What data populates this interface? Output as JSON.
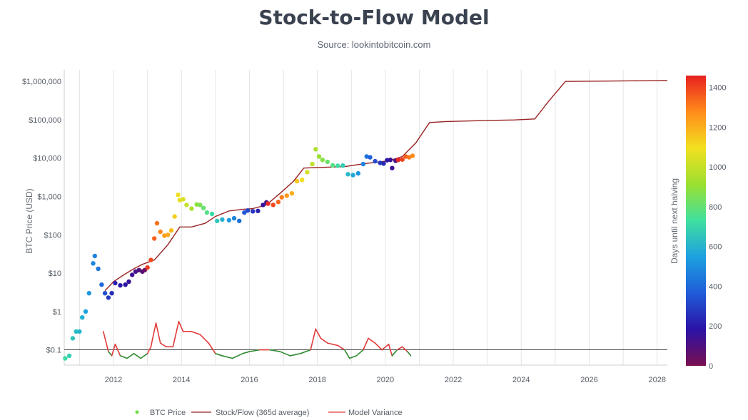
{
  "chart_data": {
    "type": "scatter",
    "title": "Stock-to-Flow Model",
    "subtitle": "Source: lookintobitcoin.com",
    "ylabel": "BTC Price (USD)",
    "xlabel": "",
    "y_scale": "log",
    "ylim": [
      0.04,
      2000000
    ],
    "xlim": [
      2010.55,
      2028.3
    ],
    "x_ticks": [
      {
        "value": 2012,
        "label": "2012"
      },
      {
        "value": 2014,
        "label": "2014"
      },
      {
        "value": 2016,
        "label": "2016"
      },
      {
        "value": 2018,
        "label": "2018"
      },
      {
        "value": 2020,
        "label": "2020"
      },
      {
        "value": 2022,
        "label": "2022"
      },
      {
        "value": 2024,
        "label": "2024"
      },
      {
        "value": 2026,
        "label": "2026"
      },
      {
        "value": 2028,
        "label": "2028"
      }
    ],
    "y_ticks": [
      {
        "value": 1000000,
        "label": "$1,000,000"
      },
      {
        "value": 100000,
        "label": "$100,000"
      },
      {
        "value": 10000,
        "label": "$10,000"
      },
      {
        "value": 1000,
        "label": "$1,000"
      },
      {
        "value": 100,
        "label": "$100"
      },
      {
        "value": 10,
        "label": "$10"
      },
      {
        "value": 1,
        "label": "$1"
      },
      {
        "value": 0.1,
        "label": "$0.1"
      }
    ],
    "reference_line_y": 0.1,
    "colorbar": {
      "label": "Days until next halving",
      "range": [
        0,
        1460
      ],
      "ticks": [
        {
          "value": 1400,
          "label": "1400"
        },
        {
          "value": 1200,
          "label": "1200"
        },
        {
          "value": 1000,
          "label": "1000"
        },
        {
          "value": 800,
          "label": "800"
        },
        {
          "value": 600,
          "label": "600"
        },
        {
          "value": 400,
          "label": "400"
        },
        {
          "value": 200,
          "label": "200"
        },
        {
          "value": 0,
          "label": "0"
        }
      ],
      "colors": [
        "#7a0f50",
        "#2b12a6",
        "#1f5bd8",
        "#1da0e0",
        "#3fe0a0",
        "#9be030",
        "#f2e020",
        "#ff8c1a",
        "#e82020"
      ]
    },
    "series": [
      {
        "name": "BTC Price",
        "kind": "scatter",
        "color": "#6fe040",
        "points": [
          [
            2010.58,
            0.06,
            720
          ],
          [
            2010.7,
            0.07,
            680
          ],
          [
            2010.8,
            0.2,
            650
          ],
          [
            2010.9,
            0.3,
            630
          ],
          [
            2011.0,
            0.3,
            610
          ],
          [
            2011.08,
            0.7,
            590
          ],
          [
            2011.18,
            1.0,
            560
          ],
          [
            2011.28,
            3.0,
            520
          ],
          [
            2011.4,
            18,
            480
          ],
          [
            2011.45,
            28,
            470
          ],
          [
            2011.55,
            13,
            440
          ],
          [
            2011.65,
            5,
            400
          ],
          [
            2011.75,
            3,
            340
          ],
          [
            2011.85,
            2.3,
            280
          ],
          [
            2011.95,
            3.0,
            250
          ],
          [
            2012.05,
            5.5,
            220
          ],
          [
            2012.2,
            4.8,
            200
          ],
          [
            2012.35,
            5.0,
            180
          ],
          [
            2012.45,
            6.0,
            160
          ],
          [
            2012.55,
            9,
            140
          ],
          [
            2012.65,
            11,
            120
          ],
          [
            2012.75,
            12,
            100
          ],
          [
            2012.85,
            11,
            80
          ],
          [
            2012.92,
            12,
            40
          ],
          [
            2013.0,
            14,
            1420
          ],
          [
            2013.1,
            22,
            1390
          ],
          [
            2013.2,
            80,
            1350
          ],
          [
            2013.28,
            200,
            1320
          ],
          [
            2013.38,
            120,
            1290
          ],
          [
            2013.5,
            95,
            1240
          ],
          [
            2013.6,
            100,
            1210
          ],
          [
            2013.7,
            130,
            1170
          ],
          [
            2013.8,
            300,
            1130
          ],
          [
            2013.9,
            1100,
            1090
          ],
          [
            2013.95,
            800,
            1070
          ],
          [
            2014.05,
            850,
            1040
          ],
          [
            2014.15,
            600,
            1000
          ],
          [
            2014.3,
            480,
            950
          ],
          [
            2014.45,
            620,
            890
          ],
          [
            2014.55,
            600,
            850
          ],
          [
            2014.65,
            500,
            810
          ],
          [
            2014.75,
            380,
            770
          ],
          [
            2014.9,
            350,
            710
          ],
          [
            2015.05,
            230,
            660
          ],
          [
            2015.2,
            250,
            600
          ],
          [
            2015.4,
            240,
            530
          ],
          [
            2015.55,
            270,
            470
          ],
          [
            2015.7,
            230,
            420
          ],
          [
            2015.85,
            380,
            360
          ],
          [
            2015.95,
            430,
            320
          ],
          [
            2016.1,
            410,
            270
          ],
          [
            2016.25,
            420,
            220
          ],
          [
            2016.4,
            600,
            160
          ],
          [
            2016.5,
            700,
            120
          ],
          [
            2016.55,
            650,
            1440
          ],
          [
            2016.7,
            600,
            1390
          ],
          [
            2016.85,
            720,
            1340
          ],
          [
            2016.95,
            950,
            1300
          ],
          [
            2017.1,
            1050,
            1250
          ],
          [
            2017.25,
            1200,
            1200
          ],
          [
            2017.4,
            2500,
            1150
          ],
          [
            2017.55,
            2700,
            1100
          ],
          [
            2017.7,
            4300,
            1040
          ],
          [
            2017.85,
            7000,
            990
          ],
          [
            2017.95,
            17000,
            950
          ],
          [
            2018.05,
            11000,
            910
          ],
          [
            2018.15,
            9000,
            870
          ],
          [
            2018.3,
            8000,
            820
          ],
          [
            2018.45,
            6500,
            770
          ],
          [
            2018.6,
            6300,
            720
          ],
          [
            2018.75,
            6400,
            670
          ],
          [
            2018.9,
            3800,
            620
          ],
          [
            2019.05,
            3600,
            570
          ],
          [
            2019.2,
            4000,
            520
          ],
          [
            2019.35,
            7000,
            470
          ],
          [
            2019.45,
            11000,
            430
          ],
          [
            2019.55,
            10500,
            380
          ],
          [
            2019.7,
            8300,
            330
          ],
          [
            2019.85,
            7500,
            280
          ],
          [
            2019.95,
            7200,
            240
          ],
          [
            2020.05,
            8800,
            200
          ],
          [
            2020.15,
            9000,
            160
          ],
          [
            2020.2,
            5500,
            140
          ],
          [
            2020.3,
            8500,
            100
          ],
          [
            2020.38,
            9000,
            1450
          ],
          [
            2020.5,
            9200,
            1400
          ],
          [
            2020.6,
            11000,
            1350
          ],
          [
            2020.7,
            10500,
            1310
          ],
          [
            2020.8,
            11500,
            1280
          ]
        ]
      },
      {
        "name": "Stock/Flow (365d average)",
        "kind": "line",
        "color": "#9a2424",
        "points": [
          [
            2011.75,
            3.5
          ],
          [
            2012.0,
            6.0
          ],
          [
            2012.3,
            9.0
          ],
          [
            2012.6,
            13
          ],
          [
            2012.85,
            17
          ],
          [
            2013.2,
            22
          ],
          [
            2013.6,
            55
          ],
          [
            2013.95,
            160
          ],
          [
            2014.3,
            160
          ],
          [
            2014.7,
            200
          ],
          [
            2015.0,
            300
          ],
          [
            2015.4,
            420
          ],
          [
            2015.8,
            460
          ],
          [
            2016.1,
            480
          ],
          [
            2016.5,
            600
          ],
          [
            2016.9,
            1200
          ],
          [
            2017.3,
            2500
          ],
          [
            2017.6,
            5500
          ],
          [
            2018.0,
            5700
          ],
          [
            2018.8,
            6000
          ],
          [
            2019.4,
            7200
          ],
          [
            2020.1,
            8500
          ],
          [
            2020.5,
            11000
          ],
          [
            2020.9,
            25000
          ],
          [
            2021.3,
            85000
          ],
          [
            2021.8,
            90000
          ],
          [
            2022.8,
            95000
          ],
          [
            2023.8,
            99000
          ],
          [
            2024.4,
            105000
          ],
          [
            2024.8,
            300000
          ],
          [
            2025.3,
            1000000
          ],
          [
            2026.5,
            1020000
          ],
          [
            2027.5,
            1040000
          ],
          [
            2028.3,
            1060000
          ]
        ]
      },
      {
        "name": "Model Variance",
        "kind": "line",
        "color": "#e03a3a",
        "color_below_reference": "#2f8a2f",
        "points": [
          [
            2011.7,
            0.3
          ],
          [
            2011.85,
            0.09
          ],
          [
            2011.95,
            0.07
          ],
          [
            2012.05,
            0.14
          ],
          [
            2012.2,
            0.07
          ],
          [
            2012.4,
            0.06
          ],
          [
            2012.6,
            0.08
          ],
          [
            2012.8,
            0.06
          ],
          [
            2013.0,
            0.08
          ],
          [
            2013.1,
            0.12
          ],
          [
            2013.25,
            0.5
          ],
          [
            2013.38,
            0.15
          ],
          [
            2013.55,
            0.12
          ],
          [
            2013.75,
            0.12
          ],
          [
            2013.92,
            0.55
          ],
          [
            2014.05,
            0.3
          ],
          [
            2014.3,
            0.3
          ],
          [
            2014.55,
            0.25
          ],
          [
            2014.8,
            0.15
          ],
          [
            2015.0,
            0.08
          ],
          [
            2015.2,
            0.07
          ],
          [
            2015.5,
            0.06
          ],
          [
            2015.8,
            0.08
          ],
          [
            2016.0,
            0.09
          ],
          [
            2016.3,
            0.1
          ],
          [
            2016.6,
            0.1
          ],
          [
            2016.9,
            0.09
          ],
          [
            2017.2,
            0.07
          ],
          [
            2017.5,
            0.08
          ],
          [
            2017.8,
            0.1
          ],
          [
            2017.95,
            0.35
          ],
          [
            2018.1,
            0.2
          ],
          [
            2018.3,
            0.15
          ],
          [
            2018.6,
            0.13
          ],
          [
            2018.8,
            0.1
          ],
          [
            2018.95,
            0.06
          ],
          [
            2019.15,
            0.07
          ],
          [
            2019.35,
            0.1
          ],
          [
            2019.5,
            0.2
          ],
          [
            2019.7,
            0.15
          ],
          [
            2019.9,
            0.1
          ],
          [
            2020.1,
            0.14
          ],
          [
            2020.2,
            0.07
          ],
          [
            2020.35,
            0.1
          ],
          [
            2020.5,
            0.12
          ],
          [
            2020.65,
            0.09
          ],
          [
            2020.75,
            0.07
          ]
        ]
      }
    ],
    "legend": {
      "placement": "bottom",
      "entries": [
        {
          "label": "BTC Price",
          "symbol": "dot",
          "color": "#6fe040"
        },
        {
          "label": "Stock/Flow (365d average)",
          "symbol": "line",
          "color": "#9a2424"
        },
        {
          "label": "Model Variance",
          "symbol": "line",
          "color": "#e03a3a"
        }
      ]
    }
  }
}
